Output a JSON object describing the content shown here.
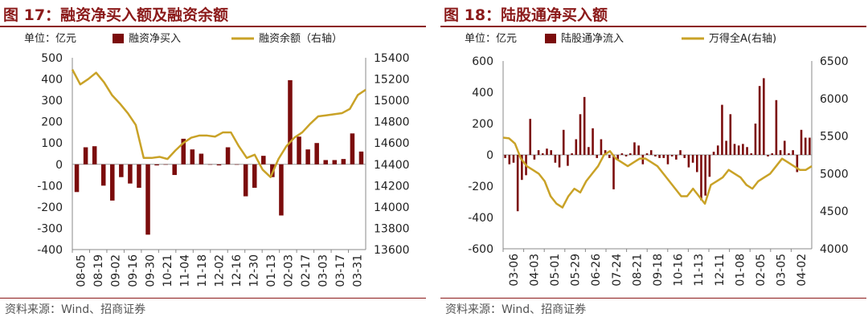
{
  "chart_data": [
    {
      "type": "bar+line",
      "title": "图 17：融资净买入额及融资余额",
      "unit_label": "单位：亿元",
      "legend": {
        "bar": "融资净买入",
        "line": "融资余额（右轴）"
      },
      "source": "资料来源：Wind、招商证券",
      "colors": {
        "bar": "#7B0C0C",
        "line": "#C9A227",
        "title": "#8B1A1A"
      },
      "y_left": {
        "ticks": [
          "500",
          "400",
          "300",
          "200",
          "100",
          "0",
          "-100",
          "-200",
          "-300",
          "-400"
        ],
        "min": -400,
        "max": 500
      },
      "y_right": {
        "ticks": [
          "15400",
          "15200",
          "15000",
          "14800",
          "14600",
          "14400",
          "14200",
          "14000",
          "13800",
          "13600"
        ],
        "min": 13600,
        "max": 15400
      },
      "x_labels": [
        "08-05",
        "08-19",
        "09-02",
        "09-16",
        "09-30",
        "10-21",
        "11-04",
        "11-18",
        "12-02",
        "12-16",
        "12-30",
        "01-13",
        "02-03",
        "02-17",
        "03-03",
        "03-17",
        "03-31"
      ],
      "bars": [
        -130,
        80,
        85,
        -100,
        -170,
        -60,
        -90,
        -110,
        -330,
        -5,
        0,
        -50,
        120,
        70,
        50,
        0,
        -5,
        80,
        0,
        -150,
        -110,
        40,
        -60,
        -240,
        395,
        130,
        70,
        100,
        20,
        20,
        25,
        145,
        60
      ],
      "line": [
        15290,
        15150,
        15200,
        15260,
        15170,
        15050,
        14970,
        14880,
        14770,
        14460,
        14460,
        14470,
        14450,
        14530,
        14600,
        14650,
        14670,
        14670,
        14660,
        14700,
        14700,
        14570,
        14460,
        14490,
        14350,
        14280,
        14450,
        14570,
        14650,
        14700,
        14780,
        14850,
        14860,
        14870,
        14880,
        14920,
        15050,
        15100
      ]
    },
    {
      "type": "bar+line",
      "title": "图 18：陆股通净买入额",
      "unit_label": "单位：亿元",
      "legend": {
        "bar": "陆股通净流入",
        "line": "万得全A(右轴)"
      },
      "source": "资料来源：Wind、招商证券",
      "colors": {
        "bar": "#7B0C0C",
        "line": "#C9A227",
        "title": "#8B1A1A"
      },
      "y_left": {
        "ticks": [
          "600",
          "400",
          "200",
          "0",
          "-200",
          "-400",
          "-600"
        ],
        "min": -600,
        "max": 600
      },
      "y_right": {
        "ticks": [
          "6500",
          "6000",
          "5500",
          "5000",
          "4500",
          "4000"
        ],
        "min": 4000,
        "max": 6500
      },
      "x_labels": [
        "03-06",
        "04-03",
        "05-01",
        "05-29",
        "06-26",
        "07-24",
        "08-21",
        "09-18",
        "10-16",
        "11-13",
        "12-11",
        "01-08",
        "02-05",
        "03-05",
        "04-02"
      ],
      "bars": [
        -20,
        -60,
        -50,
        -360,
        -160,
        -130,
        230,
        -30,
        30,
        10,
        40,
        30,
        -50,
        -80,
        160,
        -70,
        10,
        100,
        260,
        370,
        50,
        170,
        -20,
        100,
        30,
        -20,
        -220,
        -30,
        10,
        -10,
        10,
        80,
        60,
        -60,
        10,
        30,
        -10,
        -20,
        -20,
        -60,
        -10,
        -30,
        30,
        -20,
        -80,
        -50,
        -110,
        -290,
        -260,
        -140,
        20,
        60,
        320,
        90,
        260,
        70,
        60,
        70,
        50,
        10,
        200,
        440,
        490,
        -10,
        10,
        350,
        30,
        90,
        10,
        30,
        -110,
        160,
        110,
        110
      ],
      "line": [
        5480,
        5470,
        5400,
        5200,
        5100,
        5050,
        5000,
        4900,
        4700,
        4600,
        4550,
        4700,
        4800,
        4750,
        4900,
        5000,
        5100,
        5250,
        5300,
        5200,
        5150,
        5100,
        5150,
        5200,
        5200,
        5150,
        5100,
        5000,
        4900,
        4800,
        4700,
        4700,
        4800,
        4700,
        4600,
        4850,
        4900,
        4950,
        5050,
        5000,
        4950,
        4850,
        4800,
        4900,
        4950,
        5000,
        5100,
        5200,
        5150,
        5100,
        5050,
        5050,
        5100
      ]
    }
  ]
}
